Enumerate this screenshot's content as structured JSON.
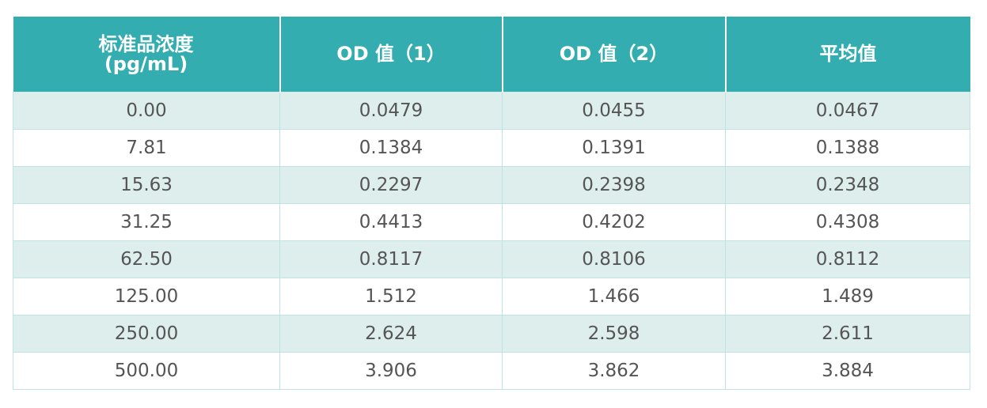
{
  "table": {
    "headers": [
      {
        "line1": "标准品浓度",
        "line2": "(pg/mL)"
      },
      {
        "line1": "OD 值（1）",
        "line2": ""
      },
      {
        "line1": "OD 值（2）",
        "line2": ""
      },
      {
        "line1": "平均值",
        "line2": ""
      }
    ],
    "rows": [
      [
        "0.00",
        "0.0479",
        "0.0455",
        "0.0467"
      ],
      [
        "7.81",
        "0.1384",
        "0.1391",
        "0.1388"
      ],
      [
        "15.63",
        "0.2297",
        "0.2398",
        "0.2348"
      ],
      [
        "31.25",
        "0.4413",
        "0.4202",
        "0.4308"
      ],
      [
        "62.50",
        "0.8117",
        "0.8106",
        "0.8112"
      ],
      [
        "125.00",
        "1.512",
        "1.466",
        "1.489"
      ],
      [
        "250.00",
        "2.624",
        "2.598",
        "2.611"
      ],
      [
        "500.00",
        "3.906",
        "3.862",
        "3.884"
      ]
    ]
  },
  "colors": {
    "header_bg": "#33adb0",
    "header_text": "#ffffff",
    "stripe_bg": "#ddeeed",
    "cell_text": "#555555",
    "border": "#bfe3e2"
  }
}
